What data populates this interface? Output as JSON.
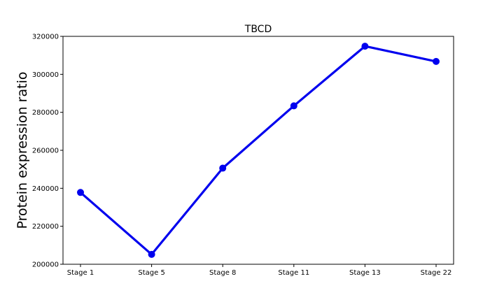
{
  "chart_data": {
    "type": "line",
    "title": "TBCD",
    "xlabel": "",
    "ylabel": "Protein expression ratio",
    "categories": [
      "Stage 1",
      "Stage 5",
      "Stage 8",
      "Stage 11",
      "Stage 13",
      "Stage 22"
    ],
    "series": [
      {
        "values": [
          237800,
          205200,
          250600,
          283400,
          314800,
          306800
        ],
        "color": "#0000ee"
      }
    ],
    "ylim": [
      200000,
      320000
    ],
    "yticks": [
      "200000",
      "220000",
      "240000",
      "260000",
      "280000",
      "300000",
      "320000"
    ],
    "ytick_values": [
      200000,
      220000,
      240000,
      260000,
      280000,
      300000,
      320000
    ],
    "grid": false,
    "legend": "none"
  }
}
